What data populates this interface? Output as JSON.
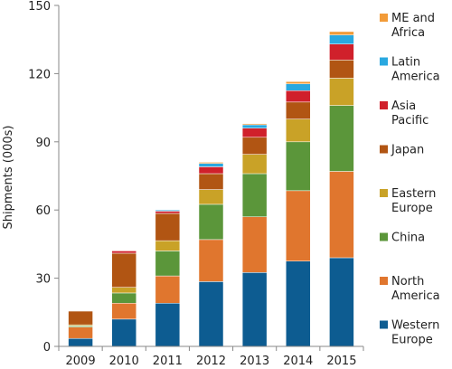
{
  "chart_data": {
    "type": "bar",
    "stacked": true,
    "title": "",
    "xlabel": "",
    "ylabel": "Shipments (000s)",
    "ylim": [
      0,
      150
    ],
    "yticks": [
      0,
      30,
      60,
      90,
      120,
      150
    ],
    "grid": false,
    "legend_position": "right",
    "categories": [
      "2009",
      "2010",
      "2011",
      "2012",
      "2013",
      "2014",
      "2015"
    ],
    "series": [
      {
        "name": "Western Europe",
        "label_lines": [
          "Western",
          "Europe"
        ],
        "color": "#0d5c91",
        "values": [
          3.5,
          12,
          19,
          28.5,
          32.5,
          37.5,
          39
        ]
      },
      {
        "name": "North America",
        "label_lines": [
          "North",
          "America"
        ],
        "color": "#e0762e",
        "values": [
          5,
          7,
          12,
          18.5,
          24.5,
          31,
          38
        ]
      },
      {
        "name": "China",
        "label_lines": [
          "China"
        ],
        "color": "#5b963a",
        "values": [
          0.5,
          4.5,
          11,
          15.5,
          19,
          21.5,
          29
        ]
      },
      {
        "name": "Eastern Europe",
        "label_lines": [
          "Eastern",
          "Europe"
        ],
        "color": "#c9a227",
        "values": [
          0.5,
          2.5,
          4.5,
          6.5,
          8.5,
          10,
          12
        ]
      },
      {
        "name": "Japan",
        "label_lines": [
          "Japan"
        ],
        "color": "#b15513",
        "values": [
          6,
          15,
          12,
          7,
          7.5,
          7.5,
          8
        ]
      },
      {
        "name": "Asia Pacific",
        "label_lines": [
          "Asia",
          "Pacific"
        ],
        "color": "#d0202b",
        "values": [
          0,
          1,
          1,
          3,
          4,
          5,
          7
        ]
      },
      {
        "name": "Latin America",
        "label_lines": [
          "Latin",
          "America"
        ],
        "color": "#29a8e0",
        "values": [
          0,
          0,
          0.5,
          1.5,
          1.5,
          3,
          4
        ]
      },
      {
        "name": "ME and Africa",
        "label_lines": [
          "ME and",
          "Africa"
        ],
        "color": "#f29b38",
        "values": [
          0,
          0,
          0,
          0.5,
          0.5,
          1,
          1.5
        ]
      }
    ]
  }
}
